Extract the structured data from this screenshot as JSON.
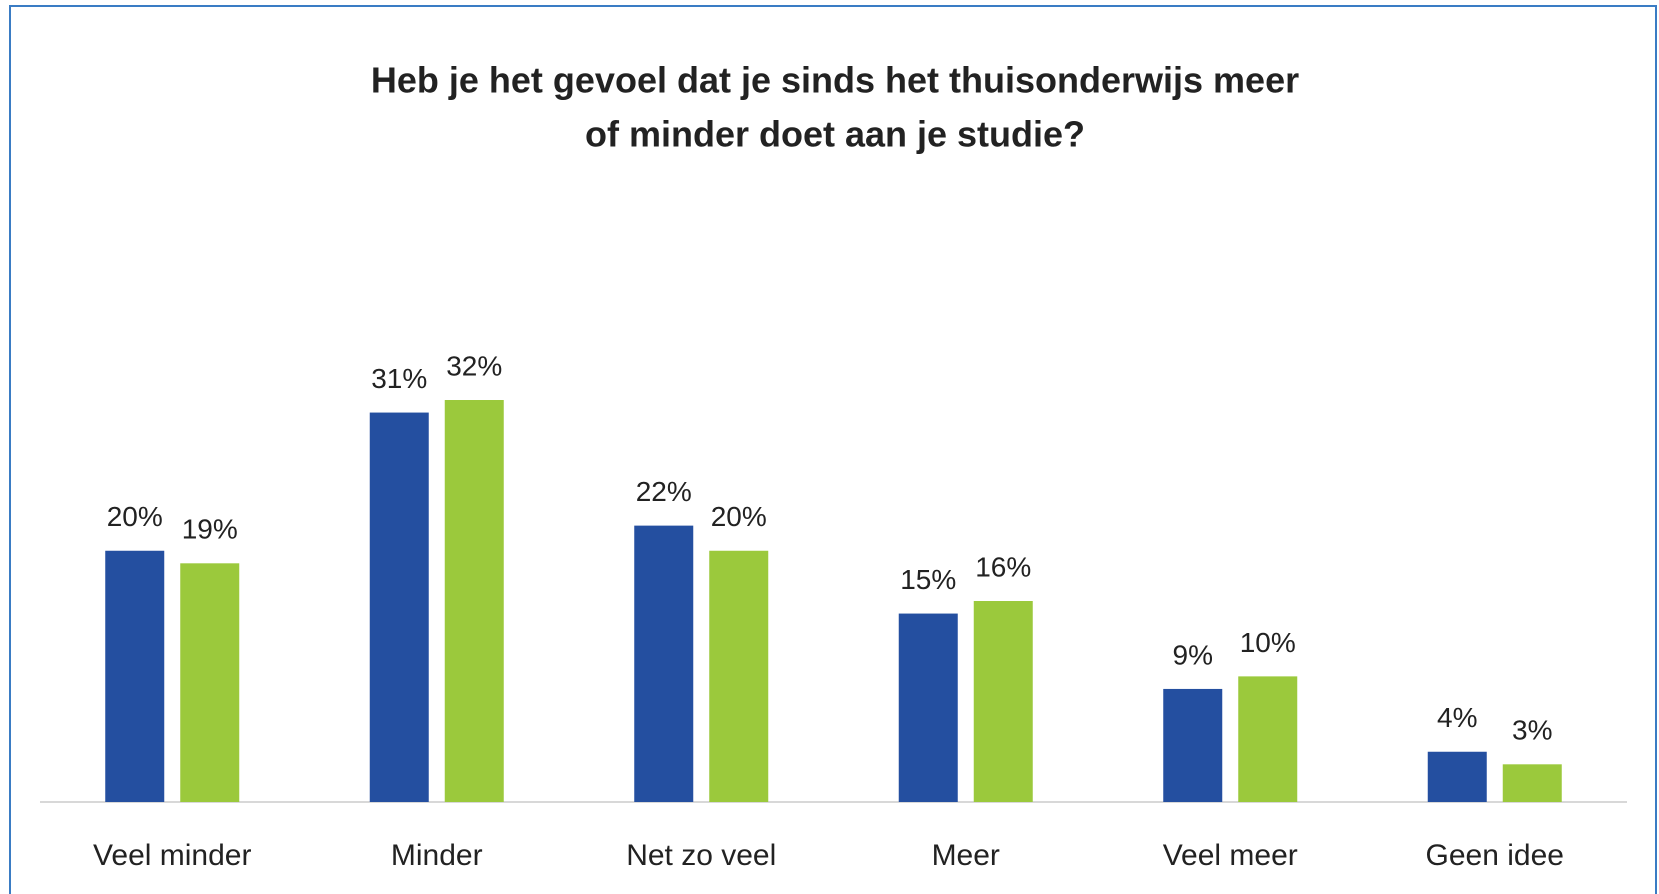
{
  "chart_data": {
    "type": "bar",
    "title": [
      "Heb je het gevoel dat je sinds het thuisonderwijs meer",
      "of minder doet aan je studie?"
    ],
    "categories": [
      "Veel minder",
      "Minder",
      "Net zo veel",
      "Meer",
      "Veel meer",
      "Geen idee"
    ],
    "series": [
      {
        "color": "#244fa0",
        "values": [
          20,
          31,
          22,
          15,
          9,
          4
        ],
        "value_labels": [
          "20%",
          "31%",
          "22%",
          "15%",
          "9%",
          "4%"
        ]
      },
      {
        "color": "#9bc93c",
        "values": [
          19,
          32,
          20,
          16,
          10,
          3
        ],
        "value_labels": [
          "19%",
          "32%",
          "20%",
          "16%",
          "10%",
          "3%"
        ]
      }
    ]
  }
}
